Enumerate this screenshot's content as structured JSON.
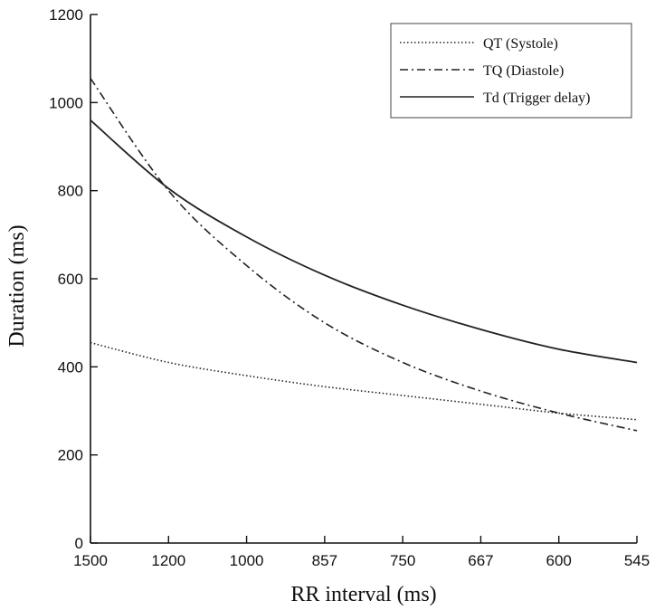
{
  "chart_data": {
    "type": "line",
    "xlabel": "RR interval (ms)",
    "ylabel": "Duration (ms)",
    "x_tick_labels": [
      "1500",
      "1200",
      "1000",
      "857",
      "750",
      "667",
      "600",
      "545"
    ],
    "x_scale": "reciprocal",
    "xlim": [
      1500,
      545
    ],
    "ylim": [
      0,
      1200
    ],
    "y_ticks": [
      0,
      200,
      400,
      600,
      800,
      1000,
      1200
    ],
    "grid": false,
    "legend_position": "top-right",
    "x": [
      1500,
      1200,
      1000,
      857,
      750,
      667,
      600,
      545
    ],
    "series": [
      {
        "name": "QT (Systole)",
        "style": "dotted",
        "color": "#222222",
        "values": [
          455,
          410,
          380,
          355,
          335,
          315,
          295,
          280
        ]
      },
      {
        "name": "TQ (Diastole)",
        "style": "dashdot",
        "color": "#222222",
        "values": [
          1055,
          800,
          630,
          500,
          410,
          345,
          295,
          255
        ]
      },
      {
        "name": "Td (Trigger delay)",
        "style": "solid",
        "color": "#222222",
        "values": [
          960,
          805,
          695,
          608,
          540,
          485,
          440,
          410
        ]
      }
    ]
  }
}
